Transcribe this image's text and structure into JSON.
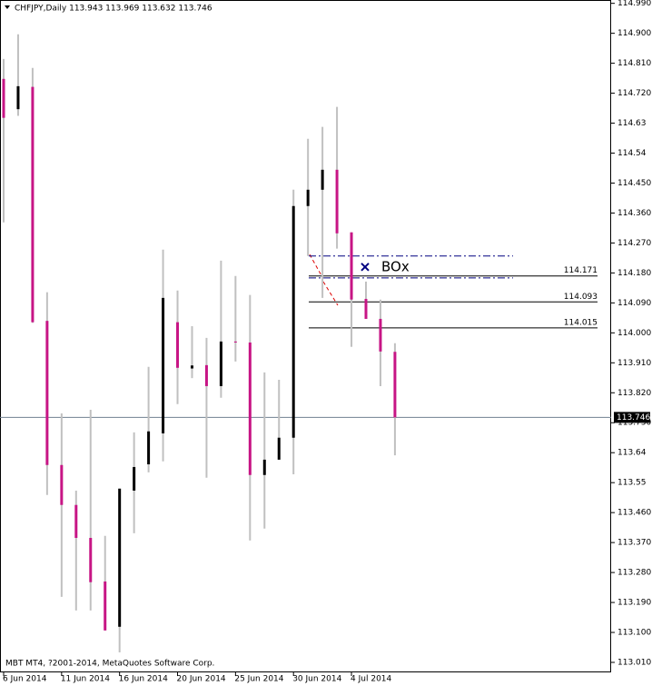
{
  "chart_data": {
    "type": "candlestick",
    "title": "CHFJPY,Daily  113.943 113.969 113.632 113.746",
    "footer": "MBT MT4, ?2001-2014, MetaQuotes Software Corp.",
    "categories": [
      "6 Jun 2014",
      null,
      null,
      null,
      "11 Jun 2014",
      null,
      null,
      null,
      "16 Jun 2014",
      null,
      null,
      null,
      "20 Jun 2014",
      null,
      null,
      null,
      "25 Jun 2014",
      null,
      null,
      null,
      "30 Jun 2014",
      null,
      null,
      null,
      "4 Jul 2014",
      null,
      null,
      null
    ],
    "open": [
      114.763,
      114.672,
      114.739,
      114.036,
      113.603,
      113.483,
      113.384,
      113.253,
      113.117,
      113.526,
      113.605,
      113.698,
      114.032,
      113.893,
      113.903,
      113.84,
      113.974,
      113.971,
      113.573,
      113.619,
      113.685,
      114.381,
      114.43,
      114.49,
      114.302,
      114.102,
      114.042,
      113.943
    ],
    "high": [
      114.823,
      114.897,
      114.796,
      114.122,
      113.758,
      113.526,
      113.769,
      113.39,
      113.532,
      113.701,
      113.898,
      114.25,
      114.127,
      114.02,
      113.985,
      114.217,
      114.171,
      114.114,
      113.881,
      113.859,
      114.43,
      114.583,
      114.619,
      114.679,
      114.302,
      114.154,
      114.1,
      113.969
    ],
    "low": [
      114.332,
      114.652,
      114.03,
      113.513,
      113.207,
      113.166,
      113.166,
      113.106,
      113.04,
      113.398,
      113.581,
      113.614,
      113.786,
      113.864,
      113.565,
      113.805,
      113.914,
      113.376,
      113.412,
      113.619,
      113.575,
      114.231,
      114.105,
      114.253,
      113.958,
      114.042,
      113.84,
      113.632
    ],
    "close": [
      114.646,
      114.741,
      114.032,
      113.603,
      113.483,
      113.384,
      113.251,
      113.106,
      113.532,
      113.597,
      113.704,
      114.105,
      113.895,
      113.902,
      113.84,
      113.974,
      113.971,
      113.573,
      113.619,
      113.685,
      114.381,
      114.43,
      114.49,
      114.299,
      114.1,
      114.042,
      113.944,
      113.746
    ],
    "up_color": "#000000",
    "down_color": "#c71585",
    "wick_color": "#c0c0c0",
    "ylim": [
      112.98,
      115.0
    ],
    "yticks": [
      {
        "value": 114.99,
        "label": "114.990"
      },
      {
        "value": 114.9,
        "label": "114.900"
      },
      {
        "value": 114.81,
        "label": "114.810"
      },
      {
        "value": 114.72,
        "label": "114.720"
      },
      114.63,
      114.54,
      {
        "value": 114.45,
        "label": "114.450"
      },
      {
        "value": 114.36,
        "label": "114.360"
      },
      {
        "value": 114.27,
        "label": "114.270"
      },
      {
        "value": 114.18,
        "label": "114.180"
      },
      {
        "value": 114.09,
        "label": "114.090"
      },
      {
        "value": 114.0,
        "label": "114.000"
      },
      {
        "value": 113.91,
        "label": "113.910"
      },
      {
        "value": 113.82,
        "label": "113.820"
      },
      {
        "value": 113.73,
        "label": "113.730"
      },
      113.64,
      113.55,
      {
        "value": 113.46,
        "label": "113.460"
      },
      {
        "value": 113.37,
        "label": "113.370"
      },
      {
        "value": 113.28,
        "label": "113.280"
      },
      {
        "value": 113.19,
        "label": "113.190"
      },
      {
        "value": 113.1,
        "label": "113.100"
      },
      {
        "value": 113.01,
        "label": "113.010"
      }
    ],
    "levels": [
      114.171,
      114.093,
      114.015
    ],
    "box_lines": [
      114.231,
      114.165
    ],
    "box_label": "BOx",
    "current_price": 113.746
  }
}
